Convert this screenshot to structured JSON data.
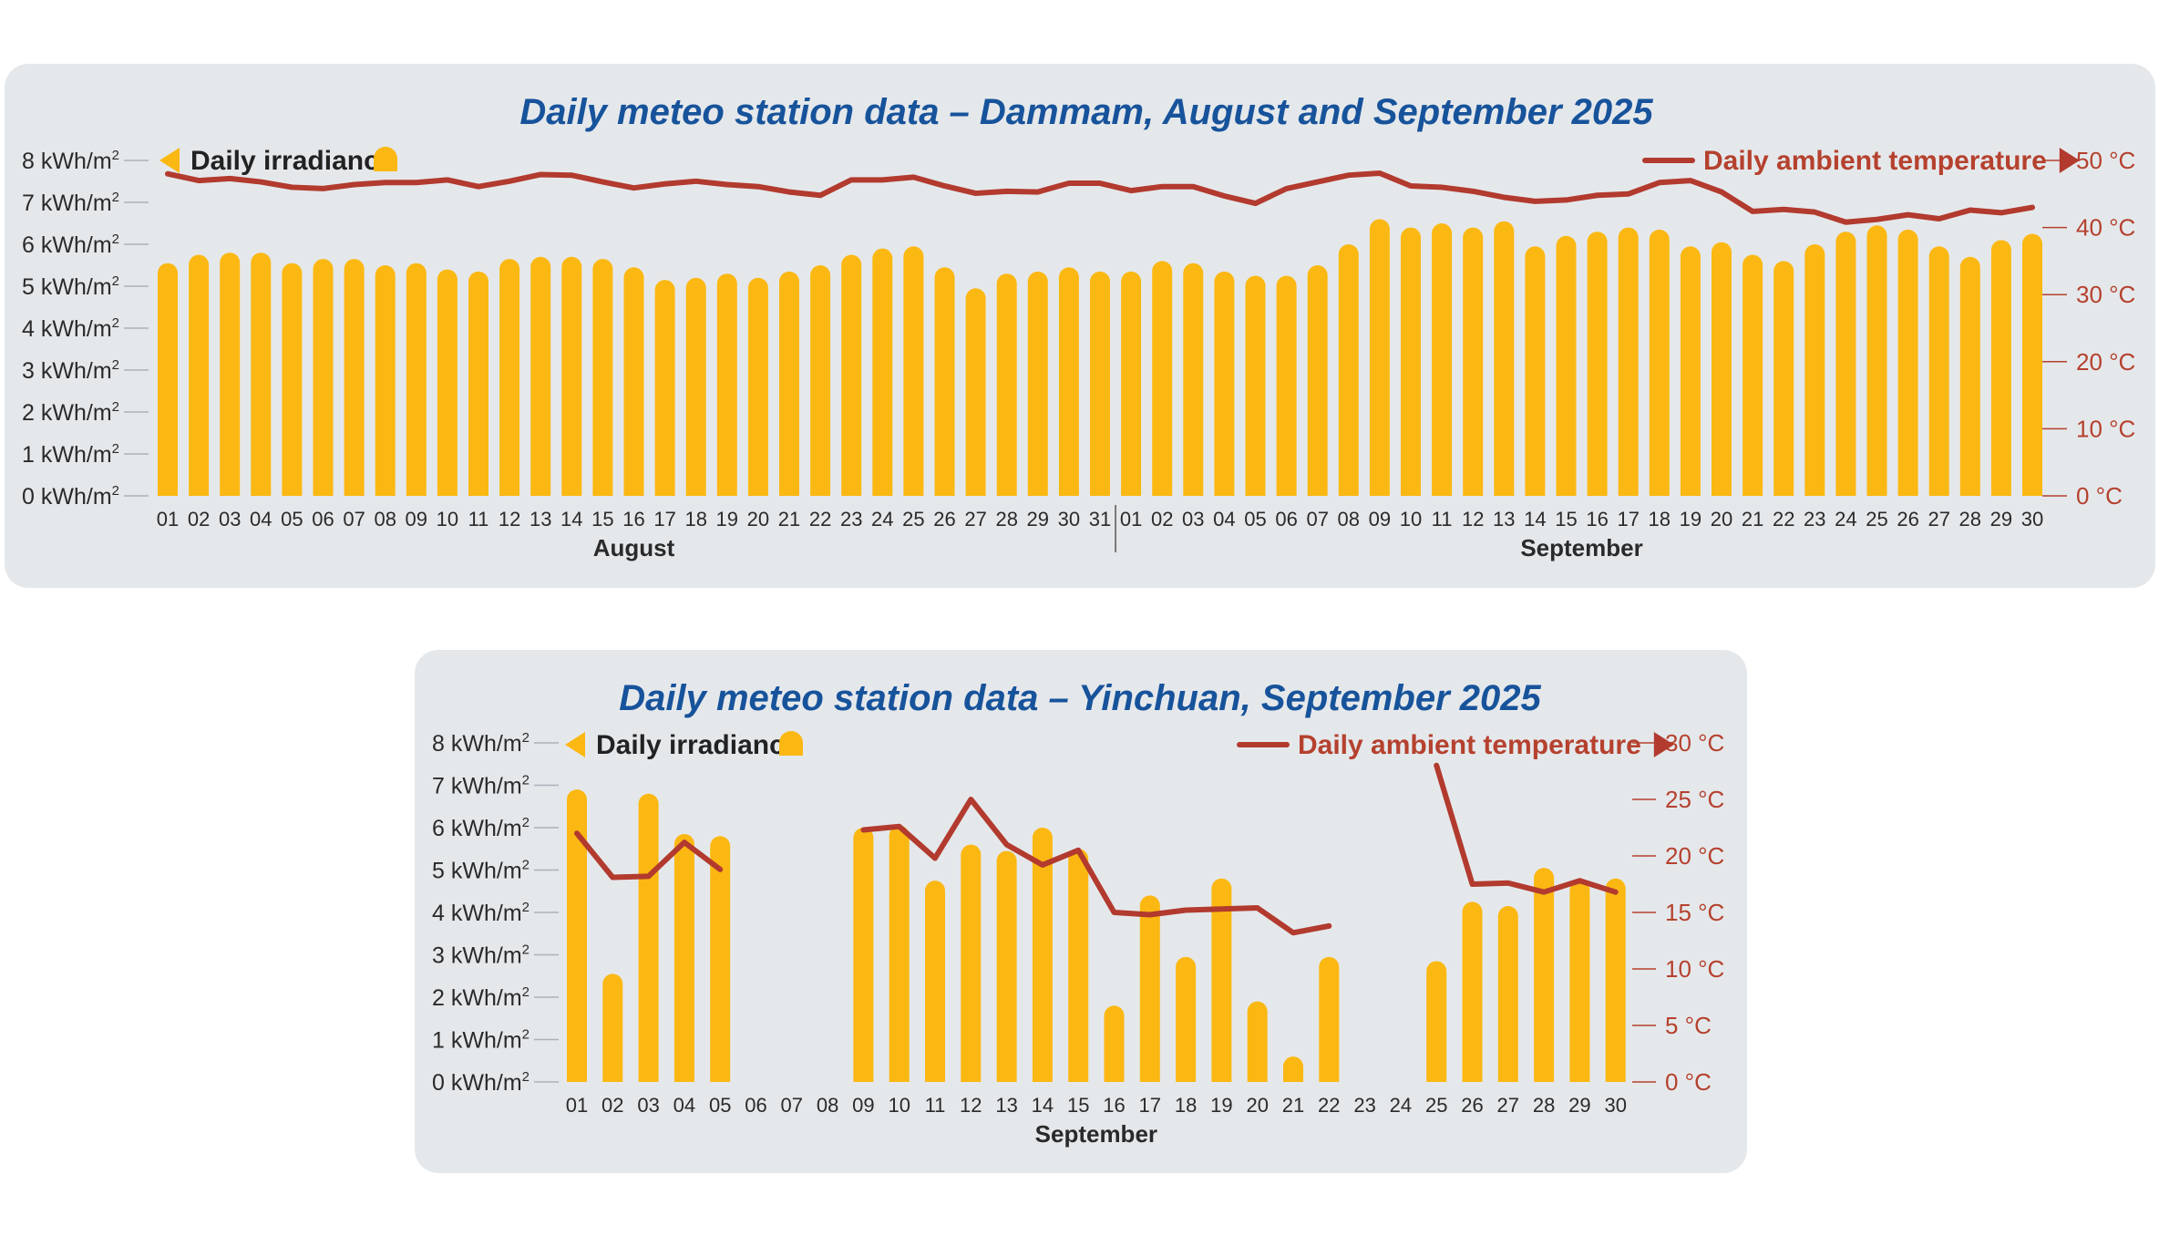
{
  "chart_data": [
    {
      "type": "bar",
      "title": "Daily meteo station data – Dammam, August and September 2025",
      "legend": {
        "irradiance": "Daily irradiance",
        "temperature": "Daily ambient temperature"
      },
      "y_left_ticks": [
        "0 kWh/m",
        "1 kWh/m",
        "2 kWh/m",
        "3 kWh/m",
        "4 kWh/m",
        "5 kWh/m",
        "6 kWh/m",
        "7 kWh/m",
        "8 kWh/m"
      ],
      "y_left_sup": "2",
      "y_right_ticks": [
        "0 °C",
        "10 °C",
        "20 °C",
        "30 °C",
        "40 °C",
        "50 °C"
      ],
      "ylim_irradiance": [
        0,
        8
      ],
      "ylim_temperature": [
        0,
        50
      ],
      "months": [
        {
          "name": "August",
          "days": [
            "01",
            "02",
            "03",
            "04",
            "05",
            "06",
            "07",
            "08",
            "09",
            "10",
            "11",
            "12",
            "13",
            "14",
            "15",
            "16",
            "17",
            "18",
            "19",
            "20",
            "21",
            "22",
            "23",
            "24",
            "25",
            "26",
            "27",
            "28",
            "29",
            "30",
            "31"
          ]
        },
        {
          "name": "September",
          "days": [
            "01",
            "02",
            "03",
            "04",
            "05",
            "06",
            "07",
            "08",
            "09",
            "10",
            "11",
            "12",
            "13",
            "14",
            "15",
            "16",
            "17",
            "18",
            "19",
            "20",
            "21",
            "22",
            "23",
            "24",
            "25",
            "26",
            "27",
            "28",
            "29",
            "30"
          ]
        }
      ],
      "series": [
        {
          "name": "Daily irradiance",
          "unit": "kWh/m2",
          "values": [
            5.55,
            5.75,
            5.8,
            5.8,
            5.55,
            5.65,
            5.65,
            5.5,
            5.55,
            5.4,
            5.35,
            5.65,
            5.7,
            5.7,
            5.65,
            5.45,
            5.15,
            5.2,
            5.3,
            5.2,
            5.35,
            5.5,
            5.75,
            5.9,
            5.95,
            5.45,
            4.95,
            5.3,
            5.35,
            5.45,
            5.35,
            5.35,
            5.6,
            5.55,
            5.35,
            5.25,
            5.25,
            5.5,
            6.0,
            6.6,
            6.4,
            6.5,
            6.4,
            6.55,
            5.95,
            6.2,
            6.3,
            6.4,
            6.35,
            5.95,
            6.05,
            5.75,
            5.6,
            6.0,
            6.3,
            6.45,
            6.35,
            5.95,
            5.7,
            6.1,
            6.25
          ]
        },
        {
          "name": "Daily ambient temperature",
          "unit": "°C",
          "values": [
            48,
            47,
            47.3,
            46.8,
            46,
            45.8,
            46.4,
            46.7,
            46.7,
            47.1,
            46.1,
            46.9,
            47.9,
            47.8,
            46.8,
            45.9,
            46.5,
            46.9,
            46.4,
            46.1,
            45.3,
            44.8,
            47.1,
            47.1,
            47.5,
            46.2,
            45.1,
            45.4,
            45.3,
            46.6,
            46.6,
            45.5,
            46.1,
            46.1,
            44.7,
            43.6,
            45.8,
            46.8,
            47.8,
            48.1,
            46.2,
            46,
            45.4,
            44.5,
            43.9,
            44.1,
            44.8,
            45,
            46.7,
            47,
            45.3,
            42.4,
            42.7,
            42.3,
            40.8,
            41.2,
            41.9,
            41.3,
            42.6,
            42.2,
            43
          ]
        }
      ]
    },
    {
      "type": "bar",
      "title": "Daily meteo station data – Yinchuan, September 2025",
      "legend": {
        "irradiance": "Daily irradiance",
        "temperature": "Daily ambient temperature"
      },
      "y_left_ticks": [
        "0 kWh/m",
        "1 kWh/m",
        "2 kWh/m",
        "3 kWh/m",
        "4 kWh/m",
        "5 kWh/m",
        "6 kWh/m",
        "7 kWh/m",
        "8 kWh/m"
      ],
      "y_left_sup": "2",
      "y_right_ticks": [
        "0 °C",
        "5 °C",
        "10 °C",
        "15 °C",
        "20 °C",
        "25 °C",
        "30 °C"
      ],
      "ylim_irradiance": [
        0,
        8
      ],
      "ylim_temperature": [
        0,
        30
      ],
      "months": [
        {
          "name": "September",
          "days": [
            "01",
            "02",
            "03",
            "04",
            "05",
            "06",
            "07",
            "08",
            "09",
            "10",
            "11",
            "12",
            "13",
            "14",
            "15",
            "16",
            "17",
            "18",
            "19",
            "20",
            "21",
            "22",
            "23",
            "24",
            "25",
            "26",
            "27",
            "28",
            "29",
            "30"
          ]
        }
      ],
      "series": [
        {
          "name": "Daily irradiance",
          "unit": "kWh/m2",
          "values": [
            6.9,
            2.55,
            6.8,
            5.85,
            5.8,
            null,
            null,
            null,
            6.0,
            6.05,
            4.75,
            5.6,
            5.45,
            6.0,
            5.5,
            1.8,
            4.4,
            2.95,
            4.8,
            1.9,
            0.6,
            2.95,
            null,
            null,
            2.85,
            4.25,
            4.15,
            5.05,
            4.75,
            4.8
          ]
        },
        {
          "name": "Daily ambient temperature",
          "unit": "°C",
          "values": [
            22,
            18.1,
            18.2,
            21.2,
            18.8,
            null,
            null,
            null,
            22.3,
            22.6,
            19.8,
            25,
            21,
            19.2,
            20.5,
            15,
            14.8,
            15.2,
            15.3,
            15.4,
            13.2,
            13.8,
            null,
            null,
            28,
            17.5,
            17.6,
            16.8,
            17.8,
            16.8
          ]
        }
      ]
    }
  ]
}
